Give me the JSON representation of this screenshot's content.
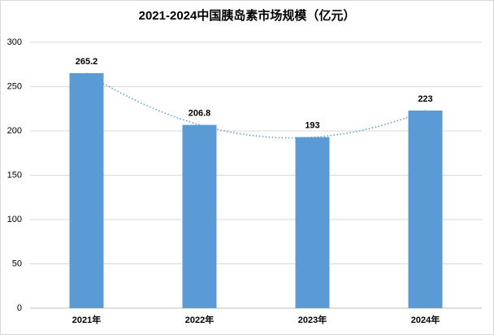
{
  "chart_data": {
    "type": "bar",
    "title": "2021-2024中国胰岛素市场规模（亿元）",
    "categories": [
      "2021年",
      "2022年",
      "2023年",
      "2024年"
    ],
    "values": [
      265.2,
      206.8,
      193,
      223
    ],
    "color": "#5b9bd5",
    "ylim": [
      0,
      300
    ],
    "yticks": [
      0,
      50,
      100,
      150,
      200,
      250,
      300
    ],
    "grid": true,
    "trendline": "polynomial"
  }
}
